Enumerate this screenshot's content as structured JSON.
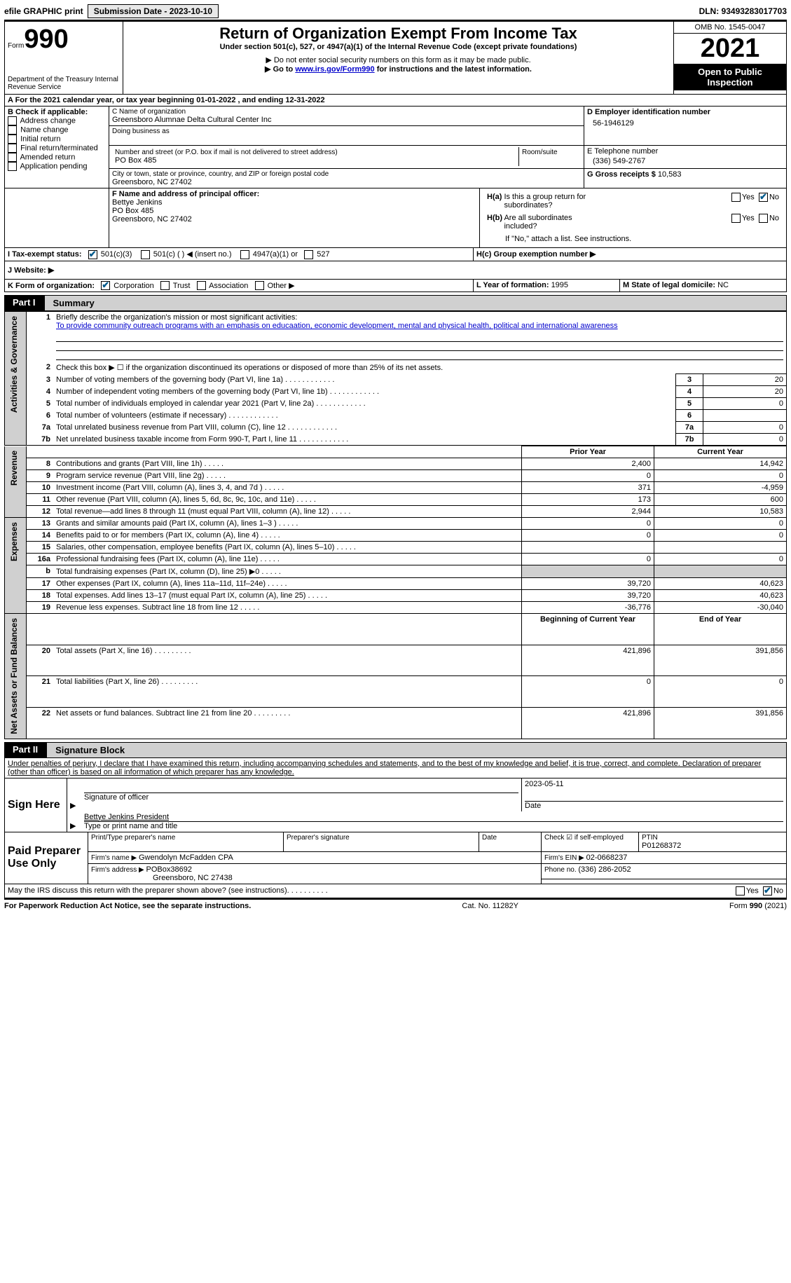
{
  "topbar": {
    "efile": "efile GRAPHIC print",
    "submission_label": "Submission Date - 2023-10-10",
    "dln_label": "DLN: 93493283017703"
  },
  "header": {
    "form_label": "Form",
    "form_number": "990",
    "title": "Return of Organization Exempt From Income Tax",
    "subtitle": "Under section 501(c), 527, or 4947(a)(1) of the Internal Revenue Code (except private foundations)",
    "note1": "▶ Do not enter social security numbers on this form as it may be made public.",
    "note2_prefix": "▶ Go to ",
    "note2_link": "www.irs.gov/Form990",
    "note2_suffix": " for instructions and the latest information.",
    "dept": "Department of the Treasury\nInternal Revenue Service",
    "omb": "OMB No. 1545-0047",
    "year": "2021",
    "open_public": "Open to Public Inspection"
  },
  "lineA": {
    "text_prefix": "A For the 2021 calendar year, or tax year beginning ",
    "begin": "01-01-2022",
    "mid": "   , and ending ",
    "end": "12-31-2022"
  },
  "boxB": {
    "label": "B Check if applicable:",
    "opts": [
      "Address change",
      "Name change",
      "Initial return",
      "Final return/terminated",
      "Amended return",
      "Application pending"
    ]
  },
  "boxC": {
    "label": "C Name of organization",
    "name": "Greensboro Alumnae Delta Cultural Center Inc",
    "dba_label": "Doing business as",
    "addr_label": "Number and street (or P.O. box if mail is not delivered to street address)",
    "room_label": "Room/suite",
    "addr": "PO Box 485",
    "city_label": "City or town, state or province, country, and ZIP or foreign postal code",
    "city": "Greensboro, NC  27402"
  },
  "boxD": {
    "label": "D Employer identification number",
    "value": "56-1946129"
  },
  "boxE": {
    "label": "E Telephone number",
    "value": "(336) 549-2767"
  },
  "boxG": {
    "label": "G Gross receipts $ ",
    "value": "10,583"
  },
  "boxF": {
    "label": "F Name and address of principal officer:",
    "name": "Bettye Jenkins",
    "addr1": "PO Box 485",
    "addr2": "Greensboro, NC  27402"
  },
  "boxH": {
    "a_label": "H(a)  Is this a group return for subordinates?",
    "b_label": "H(b)  Are all subordinates included?",
    "note": "If \"No,\" attach a list. See instructions.",
    "c_label": "H(c)  Group exemption number ▶",
    "yes": "Yes",
    "no": "No"
  },
  "boxI": {
    "label": "I  Tax-exempt status:",
    "opt1": "501(c)(3)",
    "opt2": "501(c) (  ) ◀ (insert no.)",
    "opt3": "4947(a)(1) or",
    "opt4": "527"
  },
  "boxJ": {
    "label": "J  Website: ▶"
  },
  "boxK": {
    "label": "K Form of organization:",
    "opts": [
      "Corporation",
      "Trust",
      "Association",
      "Other ▶"
    ]
  },
  "boxL": {
    "label": "L Year of formation: ",
    "value": "1995"
  },
  "boxM": {
    "label": "M State of legal domicile: ",
    "value": "NC"
  },
  "partI": {
    "label": "Part I",
    "title": "Summary",
    "l1_label": "Briefly describe the organization's mission or most significant activities:",
    "l1_text": "To provide community outreach programs with an emphasis on educaation, economic development, mental and physical health, political and international awareness",
    "l2": "Check this box ▶ ☐  if the organization discontinued its operations or disposed of more than 25% of its net assets.",
    "vlabel_ag": "Activities & Governance",
    "vlabel_rev": "Revenue",
    "vlabel_exp": "Expenses",
    "vlabel_net": "Net Assets or Fund Balances",
    "rows_ag": [
      {
        "n": "3",
        "t": "Number of voting members of the governing body (Part VI, line 1a)",
        "v": "20"
      },
      {
        "n": "4",
        "t": "Number of independent voting members of the governing body (Part VI, line 1b)",
        "v": "20"
      },
      {
        "n": "5",
        "t": "Total number of individuals employed in calendar year 2021 (Part V, line 2a)",
        "v": "0"
      },
      {
        "n": "6",
        "t": "Total number of volunteers (estimate if necessary)",
        "v": ""
      },
      {
        "n": "7a",
        "t": "Total unrelated business revenue from Part VIII, column (C), line 12",
        "v": "0"
      },
      {
        "n": "7b",
        "t": "Net unrelated business taxable income from Form 990-T, Part I, line 11",
        "v": "0"
      }
    ],
    "prior_label": "Prior Year",
    "current_label": "Current Year",
    "rows_rev": [
      {
        "n": "8",
        "t": "Contributions and grants (Part VIII, line 1h)",
        "p": "2,400",
        "c": "14,942"
      },
      {
        "n": "9",
        "t": "Program service revenue (Part VIII, line 2g)",
        "p": "0",
        "c": "0"
      },
      {
        "n": "10",
        "t": "Investment income (Part VIII, column (A), lines 3, 4, and 7d )",
        "p": "371",
        "c": "-4,959"
      },
      {
        "n": "11",
        "t": "Other revenue (Part VIII, column (A), lines 5, 6d, 8c, 9c, 10c, and 11e)",
        "p": "173",
        "c": "600"
      },
      {
        "n": "12",
        "t": "Total revenue—add lines 8 through 11 (must equal Part VIII, column (A), line 12)",
        "p": "2,944",
        "c": "10,583"
      }
    ],
    "rows_exp": [
      {
        "n": "13",
        "t": "Grants and similar amounts paid (Part IX, column (A), lines 1–3 )",
        "p": "0",
        "c": "0"
      },
      {
        "n": "14",
        "t": "Benefits paid to or for members (Part IX, column (A), line 4)",
        "p": "0",
        "c": "0"
      },
      {
        "n": "15",
        "t": "Salaries, other compensation, employee benefits (Part IX, column (A), lines 5–10)",
        "p": "",
        "c": ""
      },
      {
        "n": "16a",
        "t": "Professional fundraising fees (Part IX, column (A), line 11e)",
        "p": "0",
        "c": "0"
      },
      {
        "n": "b",
        "t": "Total fundraising expenses (Part IX, column (D), line 25) ▶0",
        "p": "SHADE",
        "c": "SHADE"
      },
      {
        "n": "17",
        "t": "Other expenses (Part IX, column (A), lines 11a–11d, 11f–24e)",
        "p": "39,720",
        "c": "40,623"
      },
      {
        "n": "18",
        "t": "Total expenses. Add lines 13–17 (must equal Part IX, column (A), line 25)",
        "p": "39,720",
        "c": "40,623"
      },
      {
        "n": "19",
        "t": "Revenue less expenses. Subtract line 18 from line 12",
        "p": "-36,776",
        "c": "-30,040"
      }
    ],
    "begin_label": "Beginning of Current Year",
    "end_label": "End of Year",
    "rows_net": [
      {
        "n": "20",
        "t": "Total assets (Part X, line 16)",
        "p": "421,896",
        "c": "391,856"
      },
      {
        "n": "21",
        "t": "Total liabilities (Part X, line 26)",
        "p": "0",
        "c": "0"
      },
      {
        "n": "22",
        "t": "Net assets or fund balances. Subtract line 21 from line 20",
        "p": "421,896",
        "c": "391,856"
      }
    ]
  },
  "partII": {
    "label": "Part II",
    "title": "Signature Block",
    "declaration": "Under penalties of perjury, I declare that I have examined this return, including accompanying schedules and statements, and to the best of my knowledge and belief, it is true, correct, and complete. Declaration of preparer (other than officer) is based on all information of which preparer has any knowledge.",
    "sign_here": "Sign Here",
    "sig_officer": "Signature of officer",
    "sig_date": "2023-05-11",
    "date_label": "Date",
    "typed_name": "Bettye Jenkins  President",
    "typed_label": "Type or print name and title",
    "paid": "Paid Preparer Use Only",
    "prep_name_label": "Print/Type preparer's name",
    "prep_sig_label": "Preparer's signature",
    "check_label": "Check ☑ if self-employed",
    "ptin_label": "PTIN",
    "ptin": "P01268372",
    "firm_name_label": "Firm's name    ▶ ",
    "firm_name": "Gwendolyn McFadden CPA",
    "firm_ein_label": "Firm's EIN ▶ ",
    "firm_ein": "02-0668237",
    "firm_addr_label": "Firm's address ▶ ",
    "firm_addr1": "POBox38692",
    "firm_addr2": "Greensboro, NC  27438",
    "phone_label": "Phone no. ",
    "phone": "(336) 286-2052",
    "discuss": "May the IRS discuss this return with the preparer shown above? (see instructions)",
    "yes": "Yes",
    "no": "No"
  },
  "footer": {
    "pra": "For Paperwork Reduction Act Notice, see the separate instructions.",
    "cat": "Cat. No. 11282Y",
    "form": "Form 990 (2021)"
  }
}
